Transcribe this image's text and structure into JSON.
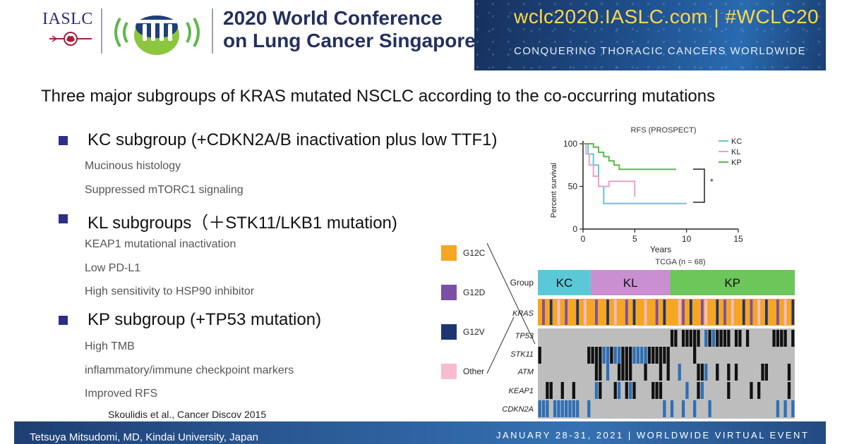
{
  "header": {
    "org": "IASLC",
    "conference_line1": "2020 World Conference",
    "conference_line2": "on Lung Cancer Singapore",
    "url": "wclc2020.IASLC.com | #WCLC20",
    "tagline": "CONQUERING THORACIC CANCERS WORLDWIDE"
  },
  "slide": {
    "heading": "Three major subgroups of KRAS mutated NSCLC according to the co-occurring mutations",
    "bullets": [
      {
        "title": "KC subgroup (+CDKN2A/B inactivation plus low TTF1)",
        "details": [
          "Mucinous histology",
          "Suppressed mTORC1 signaling"
        ]
      },
      {
        "title": "KL subgroups（＋STK11/LKB1 mutation)",
        "details": [
          "KEAP1 mutational inactivation",
          "Low PD-L1",
          "High sensitivity to HSP90 inhibitor"
        ]
      },
      {
        "title": "KP subgroup (+TP53 mutation)",
        "details": [
          "High TMB",
          "inflammatory/immune checkpoint markers",
          "Improved RFS"
        ]
      }
    ],
    "citation": "Skoulidis et al., Cancer Discov 2015"
  },
  "footer": {
    "author": "Tetsuya Mitsudomi, MD, Kindai University, Japan",
    "event": "JANUARY 28-31, 2021 | WORLDWIDE VIRTUAL EVENT"
  },
  "colors": {
    "KC": "#5bc8d8",
    "KL": "#c98fd1",
    "KP": "#6cc65a",
    "G12C": "#f5a623",
    "G12D": "#7b4fa6",
    "G12V": "#1e3570",
    "Other": "#f7bcd0",
    "mut": "#111111",
    "alt_blue": "#2e6fb5",
    "bg_gray": "#bdbdbd",
    "bullet": "#2c2f86"
  },
  "chart_data": [
    {
      "type": "line",
      "title": "RFS (PROSPECT)",
      "xlabel": "Years",
      "ylabel": "Percent survival",
      "xlim": [
        0,
        15
      ],
      "ylim": [
        0,
        100
      ],
      "x_ticks": [
        "0",
        "5",
        "10",
        "15"
      ],
      "y_ticks": [
        "0",
        "50",
        "100"
      ],
      "legend_position": "top-right",
      "annotation": "*",
      "series": [
        {
          "name": "KC",
          "color": "#5bc8d8",
          "points": [
            [
              0,
              100
            ],
            [
              0.5,
              100
            ],
            [
              0.5,
              88
            ],
            [
              1,
              88
            ],
            [
              1,
              75
            ],
            [
              1.5,
              75
            ],
            [
              1.5,
              50
            ],
            [
              2,
              50
            ],
            [
              2,
              30
            ],
            [
              10,
              30
            ]
          ]
        },
        {
          "name": "KL",
          "color": "#e6a2c8",
          "points": [
            [
              0,
              100
            ],
            [
              0.3,
              100
            ],
            [
              0.3,
              88
            ],
            [
              0.6,
              88
            ],
            [
              0.6,
              75
            ],
            [
              1,
              75
            ],
            [
              1,
              62
            ],
            [
              1.5,
              62
            ],
            [
              1.5,
              50
            ],
            [
              2.5,
              50
            ],
            [
              2.5,
              56
            ],
            [
              5,
              56
            ],
            [
              5,
              38
            ]
          ]
        },
        {
          "name": "KP",
          "color": "#5cb84a",
          "points": [
            [
              0,
              100
            ],
            [
              1,
              100
            ],
            [
              1,
              96
            ],
            [
              1.5,
              96
            ],
            [
              1.5,
              90
            ],
            [
              2,
              90
            ],
            [
              2,
              85
            ],
            [
              2.5,
              85
            ],
            [
              2.5,
              80
            ],
            [
              3,
              80
            ],
            [
              3,
              75
            ],
            [
              3.5,
              75
            ],
            [
              3.5,
              70
            ],
            [
              9,
              70
            ]
          ]
        }
      ]
    },
    {
      "type": "heatmap",
      "title": "TCGA (n = 68)",
      "groups": [
        {
          "name": "KC",
          "count": 14
        },
        {
          "name": "KL",
          "count": 21
        },
        {
          "name": "KP",
          "count": 33
        }
      ],
      "rows": [
        "Group",
        "KRAS",
        "TP53",
        "STK11",
        "ATM",
        "KEAP1",
        "CDKN2A"
      ],
      "kras_legend": [
        "G12C",
        "G12D",
        "G12V",
        "Other"
      ]
    }
  ]
}
